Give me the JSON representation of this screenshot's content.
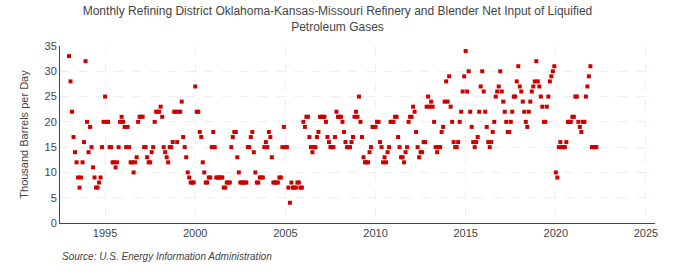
{
  "chart_data": {
    "type": "scatter",
    "title": "Monthly Refining District Oklahoma-Kansas-Missouri Refinery and Blender Net Input of Liquified\nPetroleum Gases",
    "ylabel": "Thousand Barrels per Day",
    "annotations": [
      "Source: U.S. Energy Information Administration"
    ],
    "color": "#cc0000",
    "marker": "square",
    "grid": true,
    "xlim": [
      1992.5,
      2025.5
    ],
    "ylim": [
      0,
      35
    ],
    "xticks": [
      1995,
      2000,
      2005,
      2010,
      2015,
      2020,
      2025
    ],
    "yticks": [
      0,
      5,
      10,
      15,
      20,
      25,
      30,
      35
    ],
    "x": [
      1993.0,
      1993.083,
      1993.167,
      1993.25,
      1993.333,
      1993.417,
      1993.5,
      1993.583,
      1993.667,
      1993.75,
      1993.833,
      1993.917,
      1994.0,
      1994.083,
      1994.167,
      1994.25,
      1994.333,
      1994.417,
      1994.5,
      1994.583,
      1994.667,
      1994.75,
      1994.833,
      1994.917,
      1995.0,
      1995.083,
      1995.167,
      1995.25,
      1995.333,
      1995.417,
      1995.5,
      1995.583,
      1995.667,
      1995.75,
      1995.833,
      1995.917,
      1996.0,
      1996.083,
      1996.167,
      1996.25,
      1996.333,
      1996.417,
      1996.5,
      1996.583,
      1996.667,
      1996.75,
      1996.833,
      1996.917,
      1997.0,
      1997.083,
      1997.167,
      1997.25,
      1997.333,
      1997.417,
      1997.5,
      1997.583,
      1997.667,
      1997.75,
      1997.833,
      1997.917,
      1998.0,
      1998.083,
      1998.167,
      1998.25,
      1998.333,
      1998.417,
      1998.5,
      1998.583,
      1998.667,
      1998.75,
      1998.833,
      1998.917,
      1999.0,
      1999.083,
      1999.167,
      1999.25,
      1999.333,
      1999.417,
      1999.5,
      1999.583,
      1999.667,
      1999.75,
      1999.833,
      1999.917,
      2000.0,
      2000.083,
      2000.167,
      2000.25,
      2000.333,
      2000.417,
      2000.5,
      2000.583,
      2000.667,
      2000.75,
      2000.833,
      2000.917,
      2001.0,
      2001.083,
      2001.167,
      2001.25,
      2001.333,
      2001.417,
      2001.5,
      2001.583,
      2001.667,
      2001.75,
      2001.833,
      2001.917,
      2002.0,
      2002.083,
      2002.167,
      2002.25,
      2002.333,
      2002.417,
      2002.5,
      2002.583,
      2002.667,
      2002.75,
      2002.833,
      2002.917,
      2003.0,
      2003.083,
      2003.167,
      2003.25,
      2003.333,
      2003.417,
      2003.5,
      2003.583,
      2003.667,
      2003.75,
      2003.833,
      2003.917,
      2004.0,
      2004.083,
      2004.167,
      2004.25,
      2004.333,
      2004.417,
      2004.5,
      2004.583,
      2004.667,
      2004.75,
      2004.833,
      2004.917,
      2005.0,
      2005.083,
      2005.167,
      2005.25,
      2005.333,
      2005.417,
      2005.5,
      2005.583,
      2005.667,
      2005.75,
      2005.833,
      2005.917,
      2006.0,
      2006.083,
      2006.167,
      2006.25,
      2006.333,
      2006.417,
      2006.5,
      2006.583,
      2006.667,
      2006.75,
      2006.833,
      2006.917,
      2007.0,
      2007.083,
      2007.167,
      2007.25,
      2007.333,
      2007.417,
      2007.5,
      2007.583,
      2007.667,
      2007.75,
      2007.833,
      2007.917,
      2008.0,
      2008.083,
      2008.167,
      2008.25,
      2008.333,
      2008.417,
      2008.5,
      2008.583,
      2008.667,
      2008.75,
      2008.833,
      2008.917,
      2009.0,
      2009.083,
      2009.167,
      2009.25,
      2009.333,
      2009.417,
      2009.5,
      2009.583,
      2009.667,
      2009.75,
      2009.833,
      2009.917,
      2010.0,
      2010.083,
      2010.167,
      2010.25,
      2010.333,
      2010.417,
      2010.5,
      2010.583,
      2010.667,
      2010.75,
      2010.833,
      2010.917,
      2011.0,
      2011.083,
      2011.167,
      2011.25,
      2011.333,
      2011.417,
      2011.5,
      2011.583,
      2011.667,
      2011.75,
      2011.833,
      2011.917,
      2012.0,
      2012.083,
      2012.167,
      2012.25,
      2012.333,
      2012.417,
      2012.5,
      2012.583,
      2012.667,
      2012.75,
      2012.833,
      2012.917,
      2013.0,
      2013.083,
      2013.167,
      2013.25,
      2013.333,
      2013.417,
      2013.5,
      2013.583,
      2013.667,
      2013.75,
      2013.833,
      2013.917,
      2014.0,
      2014.083,
      2014.167,
      2014.25,
      2014.333,
      2014.417,
      2014.5,
      2014.583,
      2014.667,
      2014.75,
      2014.833,
      2014.917,
      2015.0,
      2015.083,
      2015.167,
      2015.25,
      2015.333,
      2015.417,
      2015.5,
      2015.583,
      2015.667,
      2015.75,
      2015.833,
      2015.917,
      2016.0,
      2016.083,
      2016.167,
      2016.25,
      2016.333,
      2016.417,
      2016.5,
      2016.583,
      2016.667,
      2016.75,
      2016.833,
      2016.917,
      2017.0,
      2017.083,
      2017.167,
      2017.25,
      2017.333,
      2017.417,
      2017.5,
      2017.583,
      2017.667,
      2017.75,
      2017.833,
      2017.917,
      2018.0,
      2018.083,
      2018.167,
      2018.25,
      2018.333,
      2018.417,
      2018.5,
      2018.583,
      2018.667,
      2018.75,
      2018.833,
      2018.917,
      2019.0,
      2019.083,
      2019.167,
      2019.25,
      2019.333,
      2019.417,
      2019.5,
      2019.583,
      2019.667,
      2019.75,
      2019.833,
      2019.917,
      2020.0,
      2020.083,
      2020.167,
      2020.25,
      2020.333,
      2020.417,
      2020.5,
      2020.583,
      2020.667,
      2020.75,
      2020.833,
      2020.917,
      2021.0,
      2021.083,
      2021.167,
      2021.25,
      2021.333,
      2021.417,
      2021.5,
      2021.583,
      2021.667,
      2021.75,
      2021.833,
      2021.917,
      2022.0,
      2022.083,
      2022.167,
      2022.25
    ],
    "values": [
      33,
      28,
      22,
      17,
      14,
      12,
      9,
      7,
      9,
      12,
      16,
      32,
      20,
      14,
      19,
      15,
      11,
      9,
      7,
      7,
      8,
      9,
      15,
      20,
      25,
      20,
      20,
      15,
      15,
      12,
      12,
      11,
      12,
      15,
      20,
      21,
      20,
      19,
      15,
      19,
      15,
      12,
      12,
      10,
      12,
      13,
      20,
      21,
      21,
      21,
      15,
      15,
      13,
      12,
      12,
      14,
      15,
      20,
      22,
      22,
      22,
      23,
      21,
      15,
      14,
      13,
      12,
      15,
      15,
      16,
      22,
      22,
      16,
      22,
      22,
      24,
      17,
      15,
      13,
      10,
      9,
      8,
      8,
      8,
      27,
      22,
      22,
      18,
      17,
      12,
      10,
      8,
      8,
      9,
      9,
      15,
      18,
      15,
      9,
      9,
      9,
      9,
      9,
      7,
      7,
      8,
      8,
      8,
      15,
      17,
      18,
      18,
      13,
      10,
      8,
      8,
      8,
      8,
      8,
      15,
      15,
      17,
      18,
      14,
      10,
      8,
      8,
      9,
      9,
      9,
      15,
      16,
      15,
      18,
      17,
      13,
      8,
      8,
      8,
      8,
      9,
      9,
      15,
      19,
      15,
      15,
      7,
      4,
      8,
      7,
      7,
      7,
      8,
      8,
      7,
      7,
      20,
      19,
      21,
      21,
      17,
      15,
      14,
      15,
      15,
      17,
      18,
      21,
      21,
      21,
      21,
      20,
      17,
      16,
      15,
      15,
      15,
      17,
      22,
      21,
      21,
      21,
      20,
      18,
      16,
      15,
      15,
      15,
      16,
      17,
      21,
      22,
      21,
      25,
      20,
      17,
      13,
      12,
      12,
      12,
      14,
      15,
      19,
      19,
      19,
      20,
      20,
      16,
      15,
      12,
      13,
      12,
      14,
      15,
      20,
      20,
      20,
      21,
      21,
      17,
      15,
      13,
      13,
      12,
      14,
      15,
      20,
      21,
      21,
      23,
      22,
      18,
      15,
      13,
      14,
      14,
      16,
      16,
      23,
      25,
      23,
      24,
      23,
      20,
      15,
      14,
      15,
      15,
      18,
      19,
      24,
      28,
      24,
      29,
      23,
      20,
      16,
      15,
      15,
      16,
      20,
      22,
      26,
      29,
      34,
      26,
      30,
      22,
      19,
      16,
      15,
      16,
      17,
      22,
      27,
      30,
      26,
      22,
      19,
      16,
      15,
      16,
      18,
      20,
      25,
      26,
      27,
      30,
      26,
      24,
      22,
      20,
      18,
      18,
      20,
      22,
      25,
      25,
      28,
      31,
      27,
      26,
      24,
      22,
      20,
      19,
      22,
      24,
      26,
      27,
      28,
      32,
      28,
      27,
      25,
      23,
      20,
      20,
      23,
      25,
      28,
      29,
      30,
      31,
      10,
      9,
      15,
      16,
      15,
      15,
      15,
      16,
      20,
      20,
      20,
      21,
      21,
      25,
      25,
      20,
      19,
      18,
      20,
      20,
      25,
      27,
      29,
      31,
      15,
      15,
      15,
      15
    ]
  }
}
